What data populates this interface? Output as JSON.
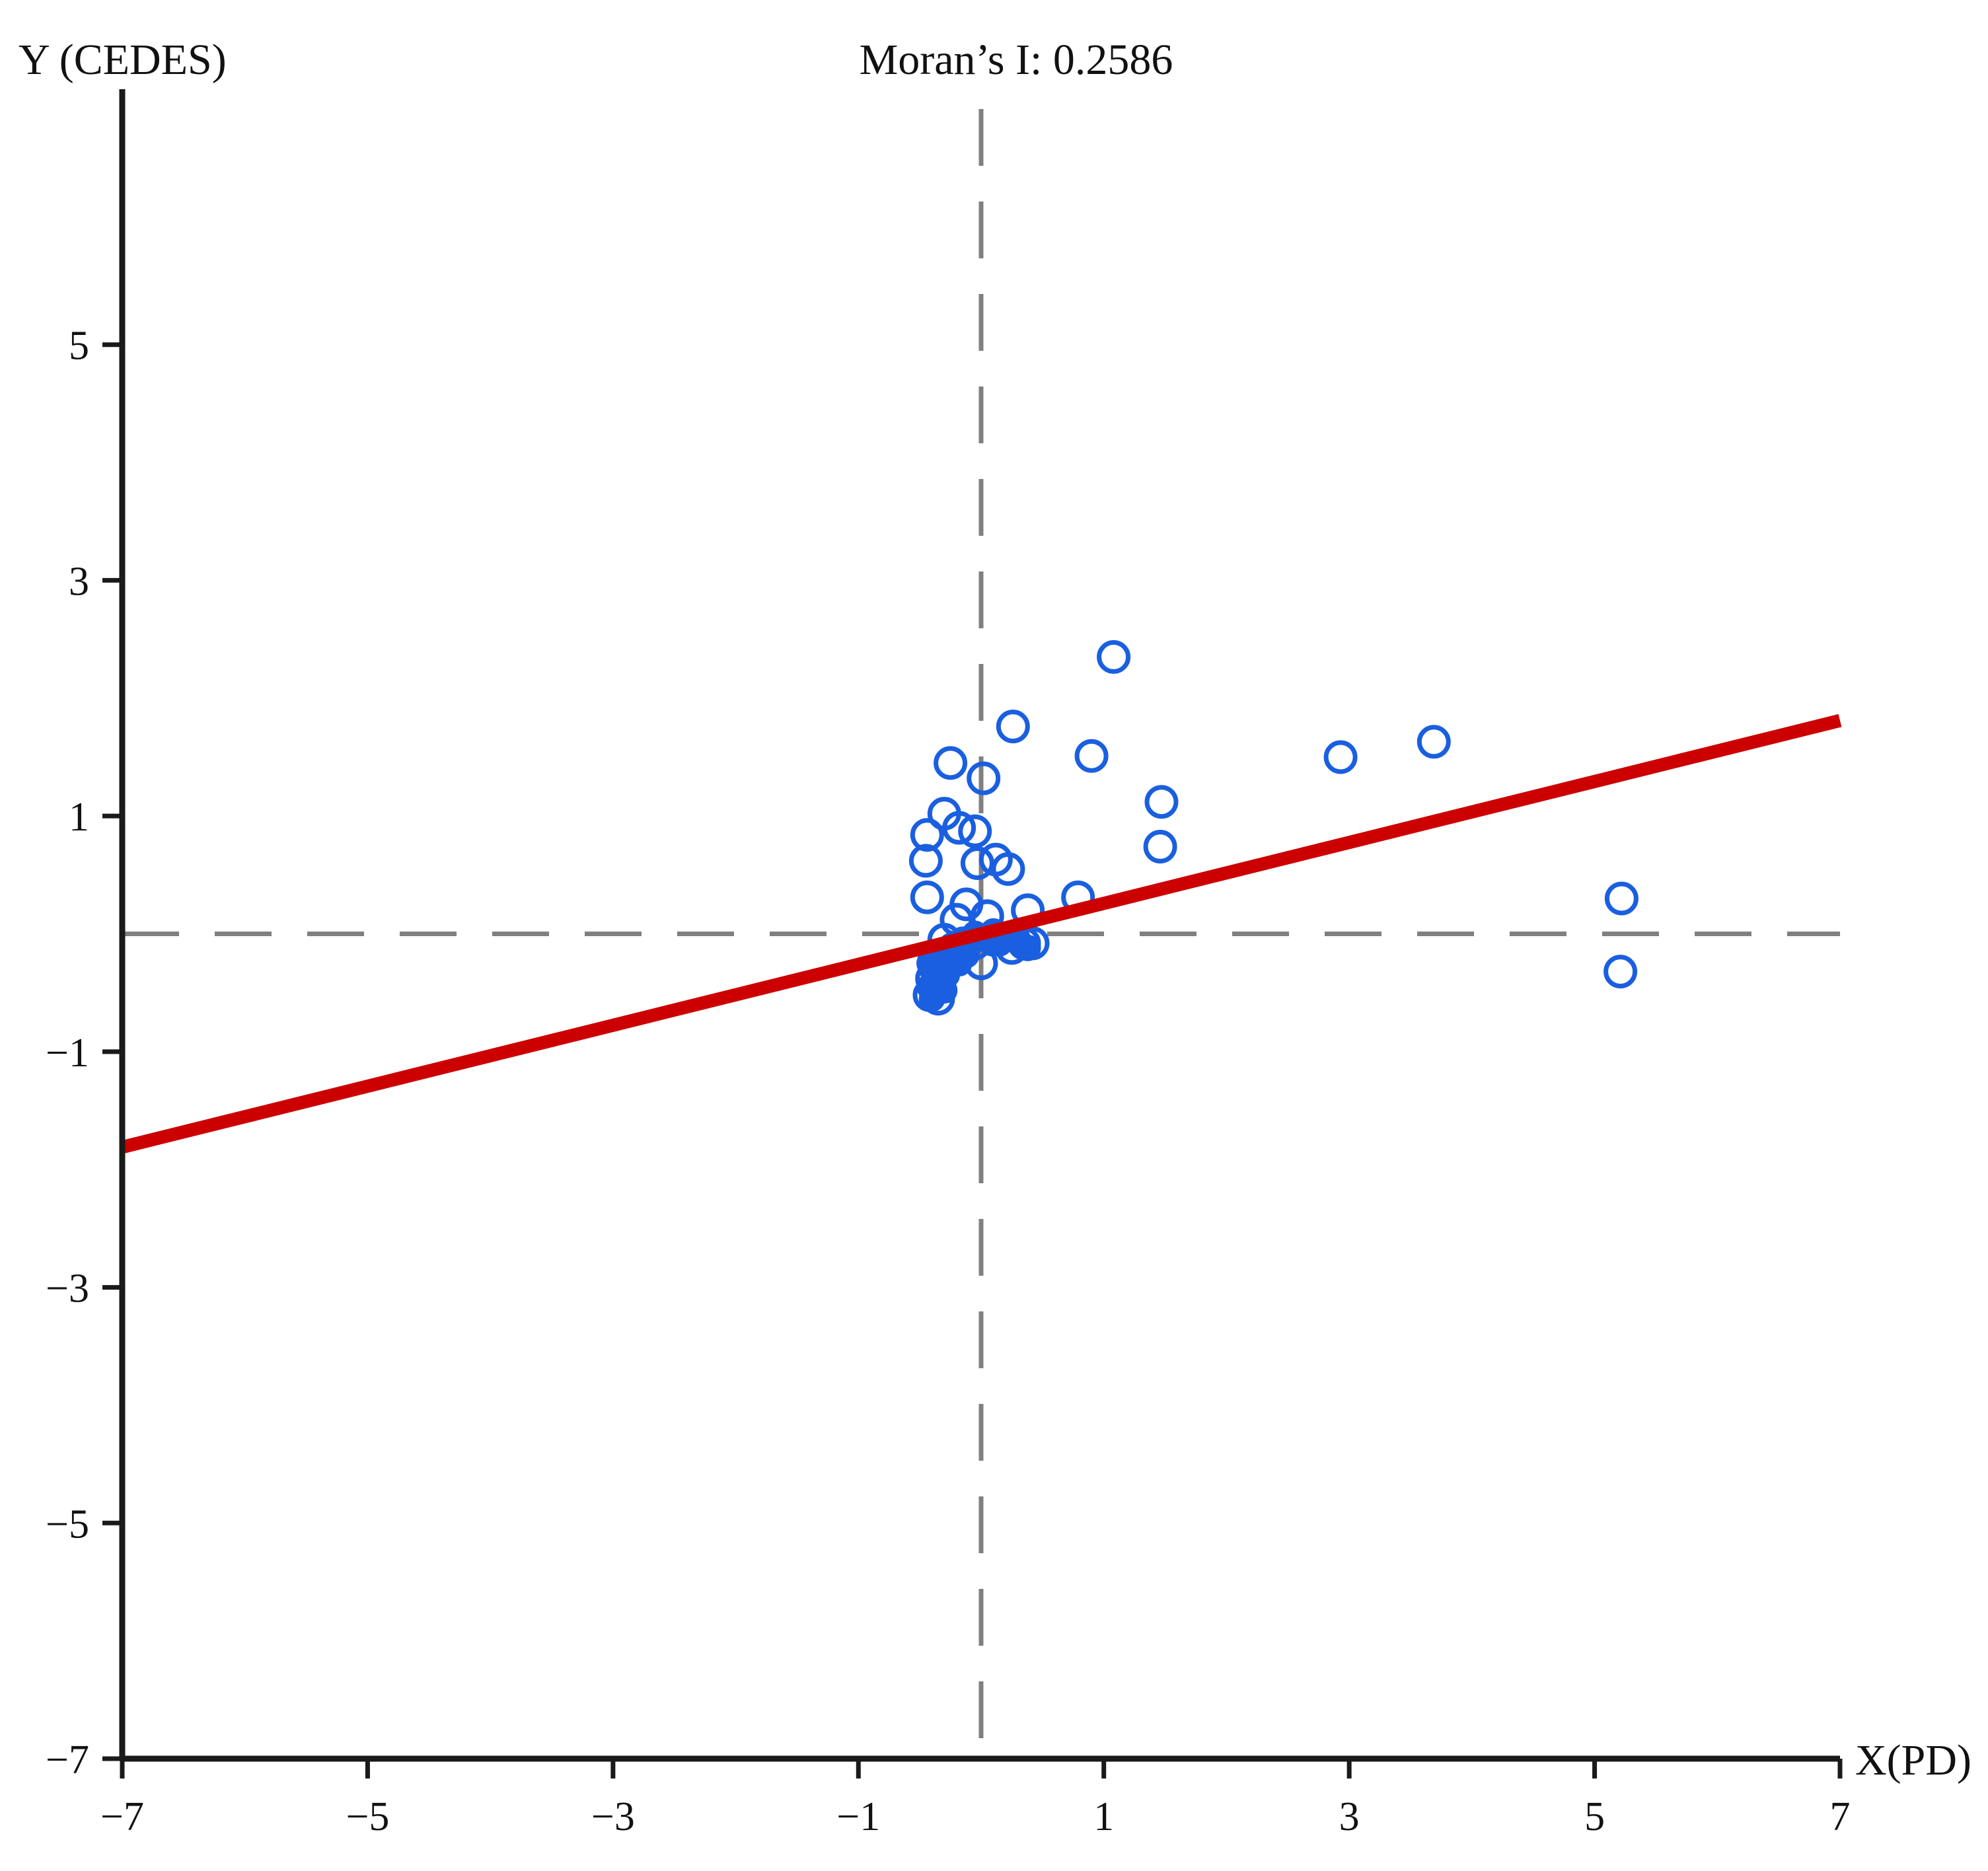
{
  "chart_data": {
    "type": "scatter",
    "title": "Moran’s I: 0.2586",
    "xlabel": "X(PD)",
    "ylabel": "Y (CEDES)",
    "xlim": [
      -7,
      7
    ],
    "ylim": [
      -7,
      7
    ],
    "x_ticks": [
      -7,
      -5,
      -3,
      -1,
      1,
      3,
      5,
      7
    ],
    "y_ticks": [
      -7,
      -5,
      -3,
      -1,
      1,
      3,
      5
    ],
    "x_tick_labels": [
      "−7",
      "−5",
      "−3",
      "−1",
      "1",
      "3",
      "5",
      "7"
    ],
    "y_tick_labels": [
      "−7",
      "−5",
      "−3",
      "−1",
      "1",
      "3",
      "5"
    ],
    "grid": false,
    "reference_lines": {
      "x": 0,
      "y": 0,
      "style": "dashed"
    },
    "fit_line": {
      "slope": 0.2586,
      "intercept": 0.0,
      "x_range": [
        -7,
        7
      ]
    },
    "colors": {
      "points": "#1a5fe0",
      "fit_line": "#cc0000",
      "reference_lines": "#808080",
      "axes": "#1a1a1a"
    },
    "series": [
      {
        "marker": "hollow-circle",
        "points": [
          [
            1.08,
            2.35
          ],
          [
            0.26,
            1.76
          ],
          [
            0.9,
            1.51
          ],
          [
            -0.25,
            1.45
          ],
          [
            0.02,
            1.32
          ],
          [
            2.93,
            1.5
          ],
          [
            3.69,
            1.63
          ],
          [
            1.47,
            1.12
          ],
          [
            1.46,
            0.74
          ],
          [
            5.22,
            0.3
          ],
          [
            5.21,
            -0.32
          ],
          [
            -0.3,
            1.02
          ],
          [
            -0.44,
            0.84
          ],
          [
            -0.18,
            0.9
          ],
          [
            -0.05,
            0.87
          ],
          [
            -0.45,
            0.62
          ],
          [
            0.12,
            0.63
          ],
          [
            -0.03,
            0.6
          ],
          [
            0.22,
            0.55
          ],
          [
            -0.44,
            0.31
          ],
          [
            0.79,
            0.31
          ],
          [
            -0.12,
            0.25
          ],
          [
            0.38,
            0.2
          ],
          [
            0.05,
            0.15
          ],
          [
            -0.2,
            0.12
          ],
          [
            -0.3,
            -0.05
          ],
          [
            0.1,
            -0.05
          ],
          [
            0.35,
            -0.08
          ],
          [
            0.42,
            -0.08
          ],
          [
            0.25,
            -0.12
          ],
          [
            -0.05,
            -0.08
          ],
          [
            0.0,
            -0.25
          ],
          [
            -0.38,
            -0.2
          ],
          [
            -0.32,
            -0.3
          ],
          [
            -0.4,
            -0.38
          ],
          [
            -0.36,
            -0.45
          ],
          [
            -0.42,
            -0.52
          ],
          [
            -0.35,
            -0.55
          ]
        ]
      },
      {
        "marker": "filled-circle",
        "points": [
          [
            -0.4,
            -0.3
          ],
          [
            -0.35,
            -0.35
          ],
          [
            -0.3,
            -0.28
          ],
          [
            -0.38,
            -0.4
          ],
          [
            -0.42,
            -0.45
          ],
          [
            -0.33,
            -0.42
          ],
          [
            -0.28,
            -0.35
          ],
          [
            -0.36,
            -0.5
          ],
          [
            -0.4,
            -0.55
          ],
          [
            -0.3,
            -0.48
          ],
          [
            -0.25,
            -0.2
          ],
          [
            -0.2,
            -0.15
          ],
          [
            -0.32,
            -0.18
          ],
          [
            -0.42,
            -0.25
          ],
          [
            -0.15,
            -0.05
          ],
          [
            -0.1,
            -0.1
          ],
          [
            0.05,
            -0.05
          ],
          [
            0.15,
            -0.08
          ],
          [
            0.3,
            -0.05
          ],
          [
            0.38,
            -0.12
          ],
          [
            -0.05,
            0.0
          ],
          [
            0.1,
            0.02
          ],
          [
            -0.24,
            -0.1
          ],
          [
            -0.18,
            -0.25
          ],
          [
            -0.12,
            -0.18
          ]
        ]
      }
    ]
  }
}
